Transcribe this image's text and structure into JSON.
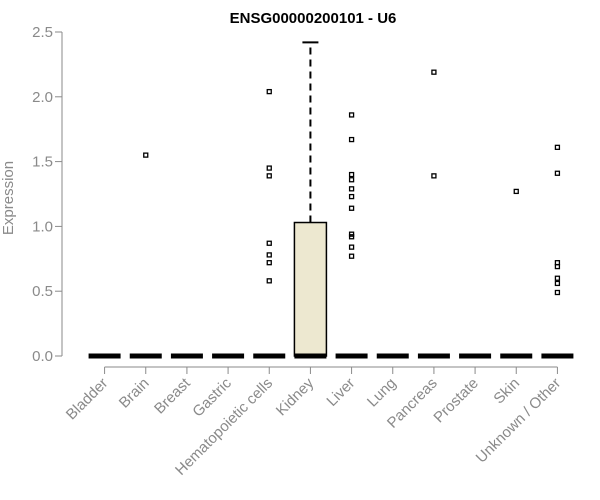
{
  "chart_data": {
    "type": "box",
    "title": "ENSG00000200101 - U6",
    "xlabel": "",
    "ylabel": "Expression",
    "ylim": [
      0,
      2.5
    ],
    "yticks": [
      0,
      0.5,
      1,
      1.5,
      2,
      2.5
    ],
    "ytick_labels": [
      "0.0",
      "0.5",
      "1.0",
      "1.5",
      "2.0",
      "2.5"
    ],
    "grid": false,
    "box_fill": "#ede8d0",
    "categories": [
      "Bladder",
      "Brain",
      "Breast",
      "Gastric",
      "Hematopoietic cells",
      "Kidney",
      "Liver",
      "Lung",
      "Pancreas",
      "Prostate",
      "Skin",
      "Unknown / Other"
    ],
    "boxes": [
      {
        "category": "Bladder",
        "q1": 0,
        "median": 0,
        "q3": 0,
        "whisker_low": 0,
        "whisker_high": 0,
        "outliers": []
      },
      {
        "category": "Brain",
        "q1": 0,
        "median": 0,
        "q3": 0,
        "whisker_low": 0,
        "whisker_high": 0,
        "outliers": [
          1.55
        ]
      },
      {
        "category": "Breast",
        "q1": 0,
        "median": 0,
        "q3": 0,
        "whisker_low": 0,
        "whisker_high": 0,
        "outliers": []
      },
      {
        "category": "Gastric",
        "q1": 0,
        "median": 0,
        "q3": 0,
        "whisker_low": 0,
        "whisker_high": 0,
        "outliers": []
      },
      {
        "category": "Hematopoietic cells",
        "q1": 0,
        "median": 0,
        "q3": 0,
        "whisker_low": 0,
        "whisker_high": 0,
        "outliers": [
          2.04,
          1.45,
          1.39,
          0.87,
          0.78,
          0.72,
          0.58
        ]
      },
      {
        "category": "Kidney",
        "q1": 0,
        "median": 0,
        "q3": 1.03,
        "whisker_low": 0,
        "whisker_high": 2.42,
        "outliers": []
      },
      {
        "category": "Liver",
        "q1": 0,
        "median": 0,
        "q3": 0,
        "whisker_low": 0,
        "whisker_high": 0,
        "outliers": [
          1.86,
          1.67,
          1.4,
          1.36,
          1.29,
          1.23,
          1.14,
          0.94,
          0.92,
          0.84,
          0.77
        ]
      },
      {
        "category": "Lung",
        "q1": 0,
        "median": 0,
        "q3": 0,
        "whisker_low": 0,
        "whisker_high": 0,
        "outliers": []
      },
      {
        "category": "Pancreas",
        "q1": 0,
        "median": 0,
        "q3": 0,
        "whisker_low": 0,
        "whisker_high": 0,
        "outliers": [
          2.19,
          1.39
        ]
      },
      {
        "category": "Prostate",
        "q1": 0,
        "median": 0,
        "q3": 0,
        "whisker_low": 0,
        "whisker_high": 0,
        "outliers": []
      },
      {
        "category": "Skin",
        "q1": 0,
        "median": 0,
        "q3": 0,
        "whisker_low": 0,
        "whisker_high": 0,
        "outliers": [
          1.27
        ]
      },
      {
        "category": "Unknown / Other",
        "q1": 0,
        "median": 0,
        "q3": 0,
        "whisker_low": 0,
        "whisker_high": 0,
        "outliers": [
          1.61,
          1.41,
          0.72,
          0.69,
          0.6,
          0.56,
          0.49
        ]
      }
    ]
  }
}
